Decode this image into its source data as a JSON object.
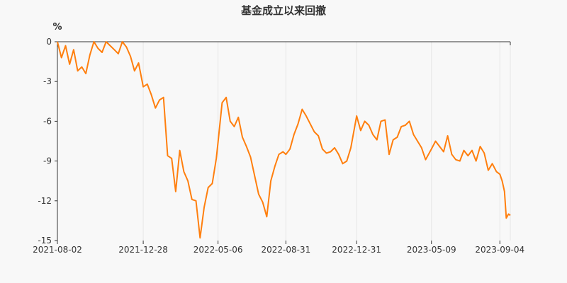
{
  "chart_data": {
    "type": "line",
    "title": "基金成立以来回撤",
    "ylabel": "%",
    "xlabel": "",
    "ylim": [
      -15,
      0
    ],
    "yticks": [
      0,
      -3,
      -6,
      -9,
      -12,
      -15
    ],
    "yticks_labels": [
      "0",
      "-3",
      "-6",
      "-9",
      "-12",
      "-15"
    ],
    "x_ticks": [
      "2021-08-02",
      "2021-12-28",
      "2022-05-06",
      "2022-08-31",
      "2022-12-31",
      "2023-05-09",
      "2023-09-04"
    ],
    "xlim": [
      "2021-08-02",
      "2023-09-22"
    ],
    "grid": "vertical",
    "legend": "none",
    "series": [
      {
        "color": "#ff7f0e",
        "x": [
          "2021-08-02",
          "2021-08-09",
          "2021-08-16",
          "2021-08-23",
          "2021-08-30",
          "2021-09-06",
          "2021-09-13",
          "2021-09-20",
          "2021-09-27",
          "2021-10-04",
          "2021-10-11",
          "2021-10-18",
          "2021-10-25",
          "2021-11-01",
          "2021-11-08",
          "2021-11-15",
          "2021-11-22",
          "2021-11-29",
          "2021-12-06",
          "2021-12-13",
          "2021-12-20",
          "2021-12-28",
          "2022-01-04",
          "2022-01-11",
          "2022-01-18",
          "2022-01-25",
          "2022-02-01",
          "2022-02-08",
          "2022-02-15",
          "2022-02-22",
          "2022-03-01",
          "2022-03-08",
          "2022-03-15",
          "2022-03-22",
          "2022-03-29",
          "2022-04-05",
          "2022-04-12",
          "2022-04-19",
          "2022-04-26",
          "2022-05-03",
          "2022-05-06",
          "2022-05-13",
          "2022-05-20",
          "2022-05-27",
          "2022-06-03",
          "2022-06-10",
          "2022-06-17",
          "2022-06-24",
          "2022-07-01",
          "2022-07-08",
          "2022-07-15",
          "2022-07-22",
          "2022-07-29",
          "2022-08-05",
          "2022-08-12",
          "2022-08-19",
          "2022-08-26",
          "2022-08-31",
          "2022-09-07",
          "2022-09-14",
          "2022-09-21",
          "2022-09-28",
          "2022-10-05",
          "2022-10-12",
          "2022-10-19",
          "2022-10-26",
          "2022-11-02",
          "2022-11-09",
          "2022-11-16",
          "2022-11-23",
          "2022-11-30",
          "2022-12-07",
          "2022-12-14",
          "2022-12-21",
          "2022-12-31",
          "2023-01-07",
          "2023-01-14",
          "2023-01-21",
          "2023-01-28",
          "2023-02-04",
          "2023-02-11",
          "2023-02-18",
          "2023-02-25",
          "2023-03-04",
          "2023-03-11",
          "2023-03-18",
          "2023-03-25",
          "2023-04-01",
          "2023-04-08",
          "2023-04-15",
          "2023-04-22",
          "2023-04-29",
          "2023-05-09",
          "2023-05-16",
          "2023-05-23",
          "2023-05-30",
          "2023-06-06",
          "2023-06-13",
          "2023-06-20",
          "2023-06-27",
          "2023-07-04",
          "2023-07-11",
          "2023-07-18",
          "2023-07-25",
          "2023-08-01",
          "2023-08-08",
          "2023-08-15",
          "2023-08-22",
          "2023-08-29",
          "2023-09-04",
          "2023-09-08",
          "2023-09-12",
          "2023-09-15",
          "2023-09-19",
          "2023-09-22"
        ],
        "values": [
          0,
          -1.2,
          -0.3,
          -1.7,
          -0.6,
          -2.2,
          -1.9,
          -2.4,
          -1.0,
          0,
          -0.5,
          -0.8,
          0,
          -0.3,
          -0.6,
          -0.9,
          0,
          -0.4,
          -1.1,
          -2.2,
          -1.6,
          -3.4,
          -3.2,
          -4.0,
          -5.0,
          -4.4,
          -4.2,
          -8.6,
          -8.8,
          -11.3,
          -8.2,
          -9.8,
          -10.5,
          -11.9,
          -12.0,
          -14.8,
          -12.5,
          -11.0,
          -10.7,
          -8.8,
          -7.6,
          -4.6,
          -4.2,
          -6.0,
          -6.4,
          -5.7,
          -7.2,
          -7.9,
          -8.7,
          -10.1,
          -11.5,
          -12.1,
          -13.2,
          -10.5,
          -9.4,
          -8.5,
          -8.3,
          -8.5,
          -8.1,
          -7.0,
          -6.2,
          -5.1,
          -5.6,
          -6.2,
          -6.8,
          -7.1,
          -8.1,
          -8.4,
          -8.3,
          -8.0,
          -8.5,
          -9.2,
          -9.0,
          -8.0,
          -5.6,
          -6.7,
          -6.0,
          -6.3,
          -7.0,
          -7.4,
          -6.0,
          -5.9,
          -8.5,
          -7.4,
          -7.2,
          -6.4,
          -6.3,
          -6.0,
          -7.0,
          -7.5,
          -8.0,
          -8.9,
          -8.1,
          -7.5,
          -7.9,
          -8.3,
          -7.1,
          -8.5,
          -8.9,
          -9.0,
          -8.2,
          -8.6,
          -8.2,
          -9.0,
          -7.9,
          -8.4,
          -9.7,
          -9.2,
          -9.8,
          -10.0,
          -10.5,
          -11.3,
          -13.3,
          -13.0,
          -13.1
        ]
      }
    ]
  }
}
